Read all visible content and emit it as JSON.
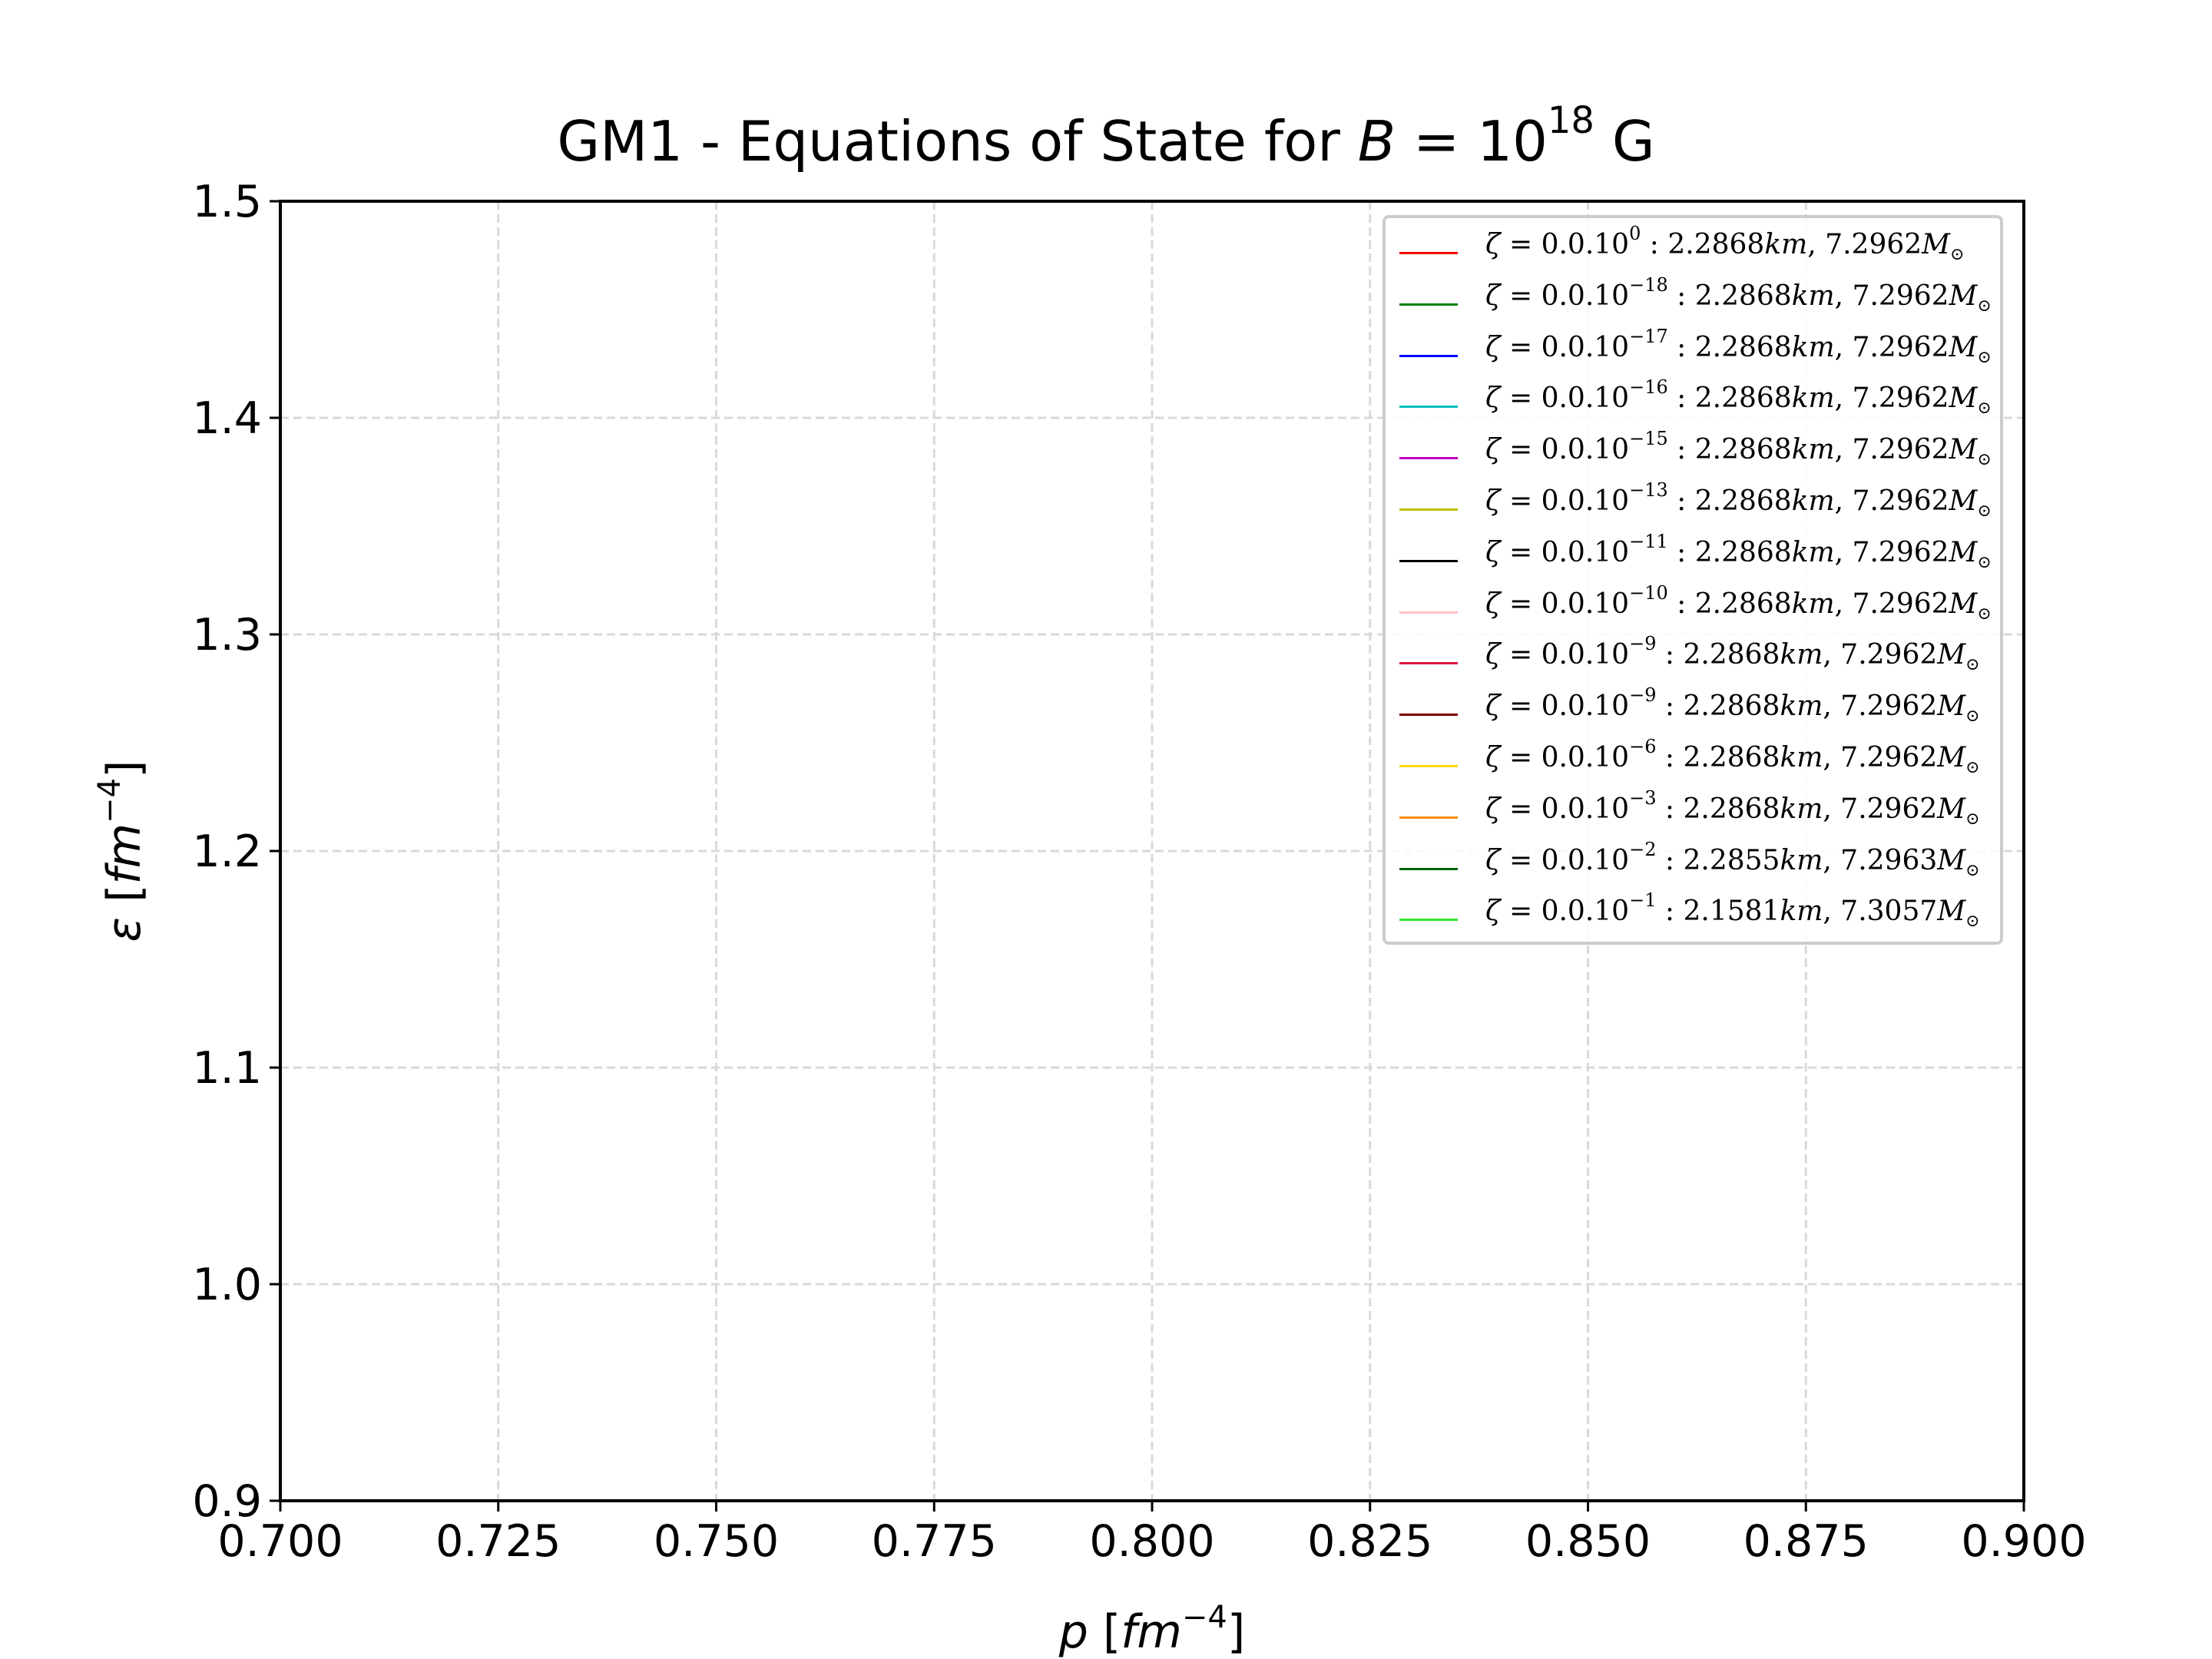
{
  "chart_data": {
    "type": "line",
    "title": "GM1 - Equations of State for B = 10^18 G",
    "title_parts": {
      "prefix": "GM1 - Equations of State for ",
      "var": "B",
      "eq": " = 10",
      "exp": "18",
      "unit": " G"
    },
    "xlabel": "p [fm^-4]",
    "ylabel": "ε [fm^-4]",
    "xlabel_parts": {
      "var": "p",
      "open": " [",
      "unit": "fm",
      "exp": "−4",
      "close": "]"
    },
    "ylabel_parts": {
      "var": "ε",
      "open": " [",
      "unit": "fm",
      "exp": "−4",
      "close": "]"
    },
    "xlim": [
      0.7,
      0.9
    ],
    "ylim": [
      0.9,
      1.5
    ],
    "xticks": [
      "0.700",
      "0.725",
      "0.750",
      "0.775",
      "0.800",
      "0.825",
      "0.850",
      "0.875",
      "0.900"
    ],
    "yticks": [
      "0.9",
      "1.0",
      "1.1",
      "1.2",
      "1.3",
      "1.4",
      "1.5"
    ],
    "grid": true,
    "legend_position": "top-right",
    "series": [
      {
        "name": "ζ = 0.0.10^0 : 2.2868km, 7.2962M⊙",
        "exp": "0",
        "radius": "2.2868",
        "mass": "7.2962",
        "color": "#ff0000",
        "values": []
      },
      {
        "name": "ζ = 0.0.10^-18 : 2.2868km, 7.2962M⊙",
        "exp": "−18",
        "radius": "2.2868",
        "mass": "7.2962",
        "color": "#008000",
        "values": []
      },
      {
        "name": "ζ = 0.0.10^-17 : 2.2868km, 7.2962M⊙",
        "exp": "−17",
        "radius": "2.2868",
        "mass": "7.2962",
        "color": "#0000ff",
        "values": []
      },
      {
        "name": "ζ = 0.0.10^-16 : 2.2868km, 7.2962M⊙",
        "exp": "−16",
        "radius": "2.2868",
        "mass": "7.2962",
        "color": "#00bfbf",
        "values": []
      },
      {
        "name": "ζ = 0.0.10^-15 : 2.2868km, 7.2962M⊙",
        "exp": "−15",
        "radius": "2.2868",
        "mass": "7.2962",
        "color": "#bf00bf",
        "values": []
      },
      {
        "name": "ζ = 0.0.10^-13 : 2.2868km, 7.2962M⊙",
        "exp": "−13",
        "radius": "2.2868",
        "mass": "7.2962",
        "color": "#bfbf00",
        "values": []
      },
      {
        "name": "ζ = 0.0.10^-11 : 2.2868km, 7.2962M⊙",
        "exp": "−11",
        "radius": "2.2868",
        "mass": "7.2962",
        "color": "#000000",
        "values": []
      },
      {
        "name": "ζ = 0.0.10^-10 : 2.2868km, 7.2962M⊙",
        "exp": "−10",
        "radius": "2.2868",
        "mass": "7.2962",
        "color": "#ffc0cb",
        "values": []
      },
      {
        "name": "ζ = 0.0.10^-9 : 2.2868km, 7.2962M⊙",
        "exp": "−9",
        "radius": "2.2868",
        "mass": "7.2962",
        "color": "#dc143c",
        "values": []
      },
      {
        "name": "ζ = 0.0.10^-9 : 2.2868km, 7.2962M⊙",
        "exp": "−9",
        "radius": "2.2868",
        "mass": "7.2962",
        "color": "#800000",
        "values": []
      },
      {
        "name": "ζ = 0.0.10^-6 : 2.2868km, 7.2962M⊙",
        "exp": "−6",
        "radius": "2.2868",
        "mass": "7.2962",
        "color": "#ffd700",
        "values": []
      },
      {
        "name": "ζ = 0.0.10^-3 : 2.2868km, 7.2962M⊙",
        "exp": "−3",
        "radius": "2.2868",
        "mass": "7.2962",
        "color": "#ff8c00",
        "values": []
      },
      {
        "name": "ζ = 0.0.10^-2 : 2.2855km, 7.2963M⊙",
        "exp": "−2",
        "radius": "2.2855",
        "mass": "7.2963",
        "color": "#006400",
        "values": []
      },
      {
        "name": "ζ = 0.0.10^-1 : 2.1581km, 7.3057M⊙",
        "exp": "−1",
        "radius": "2.1581",
        "mass": "7.3057",
        "color": "#32e632",
        "values": []
      }
    ]
  }
}
